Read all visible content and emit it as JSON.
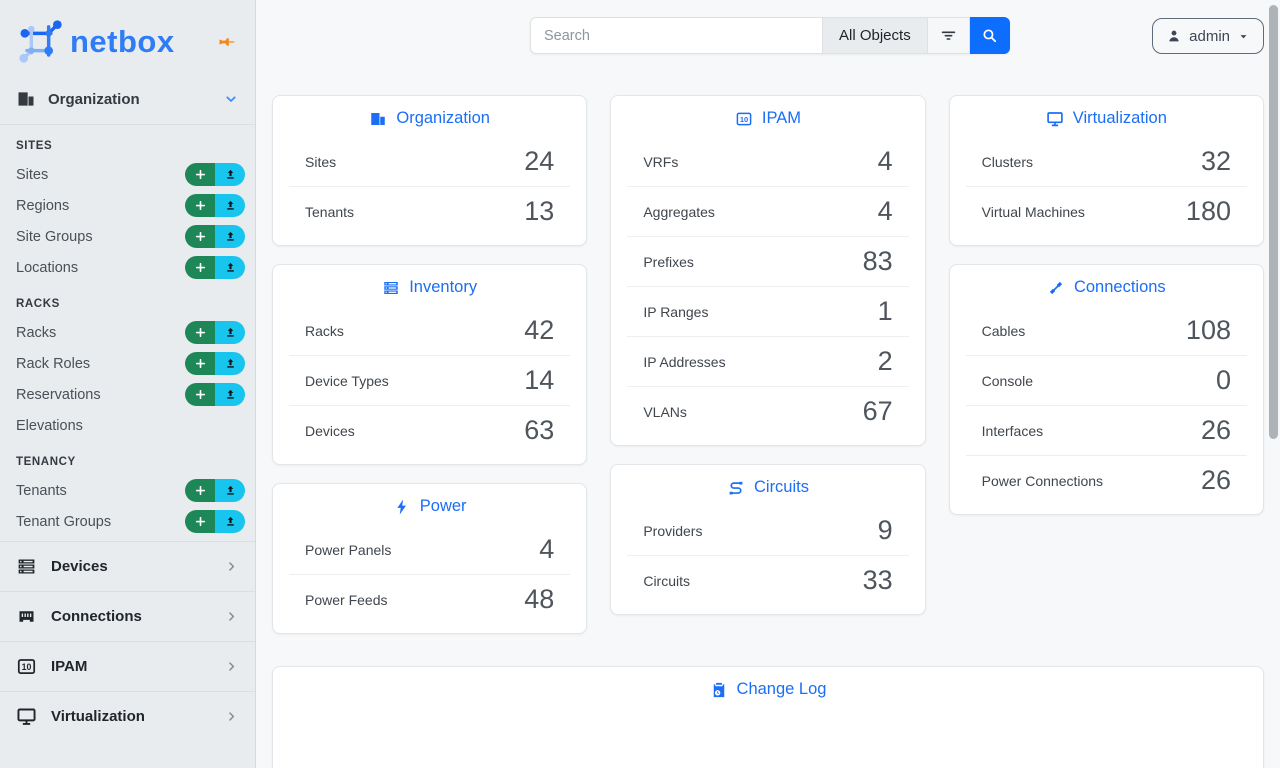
{
  "brand": {
    "name": "netbox"
  },
  "colors": {
    "primary_blue": "#1b6ef5",
    "logo_blue": "#2e7cf6",
    "add_green": "#1d8757",
    "import_cyan": "#18c5ee",
    "pin_orange": "#f6871f",
    "search_button_blue": "#0d6efd"
  },
  "sidebar": {
    "expanded_group": {
      "label": "Organization",
      "icon": "building"
    },
    "sections": [
      {
        "title": "SITES",
        "items": [
          {
            "label": "Sites",
            "actions": true
          },
          {
            "label": "Regions",
            "actions": true
          },
          {
            "label": "Site Groups",
            "actions": true
          },
          {
            "label": "Locations",
            "actions": true
          }
        ]
      },
      {
        "title": "RACKS",
        "items": [
          {
            "label": "Racks",
            "actions": true
          },
          {
            "label": "Rack Roles",
            "actions": true
          },
          {
            "label": "Reservations",
            "actions": true
          },
          {
            "label": "Elevations",
            "actions": false
          }
        ]
      },
      {
        "title": "TENANCY",
        "items": [
          {
            "label": "Tenants",
            "actions": true
          },
          {
            "label": "Tenant Groups",
            "actions": true
          }
        ]
      }
    ],
    "collapsed_groups": [
      {
        "label": "Devices",
        "icon": "server"
      },
      {
        "label": "Connections",
        "icon": "ethernet"
      },
      {
        "label": "IPAM",
        "icon": "binary"
      },
      {
        "label": "Virtualization",
        "icon": "monitor"
      }
    ]
  },
  "topbar": {
    "search_placeholder": "Search",
    "scope_label": "All Objects",
    "user_label": "admin",
    "icons": {
      "filter": "filter-variant",
      "submit": "magnify",
      "user": "person",
      "caret": "caret-down"
    }
  },
  "cards": {
    "columns": [
      [
        {
          "title": "Organization",
          "icon": "building",
          "rows": [
            {
              "label": "Sites",
              "value": "24"
            },
            {
              "label": "Tenants",
              "value": "13"
            }
          ]
        },
        {
          "title": "Inventory",
          "icon": "server",
          "rows": [
            {
              "label": "Racks",
              "value": "42"
            },
            {
              "label": "Device Types",
              "value": "14"
            },
            {
              "label": "Devices",
              "value": "63"
            }
          ]
        },
        {
          "title": "Power",
          "icon": "bolt",
          "rows": [
            {
              "label": "Power Panels",
              "value": "4"
            },
            {
              "label": "Power Feeds",
              "value": "48"
            }
          ]
        }
      ],
      [
        {
          "title": "IPAM",
          "icon": "binary",
          "rows": [
            {
              "label": "VRFs",
              "value": "4"
            },
            {
              "label": "Aggregates",
              "value": "4"
            },
            {
              "label": "Prefixes",
              "value": "83"
            },
            {
              "label": "IP Ranges",
              "value": "1"
            },
            {
              "label": "IP Addresses",
              "value": "2"
            },
            {
              "label": "VLANs",
              "value": "67"
            }
          ]
        },
        {
          "title": "Circuits",
          "icon": "route",
          "rows": [
            {
              "label": "Providers",
              "value": "9"
            },
            {
              "label": "Circuits",
              "value": "33"
            }
          ]
        }
      ],
      [
        {
          "title": "Virtualization",
          "icon": "monitor",
          "rows": [
            {
              "label": "Clusters",
              "value": "32"
            },
            {
              "label": "Virtual Machines",
              "value": "180"
            }
          ]
        },
        {
          "title": "Connections",
          "icon": "cable",
          "rows": [
            {
              "label": "Cables",
              "value": "108"
            },
            {
              "label": "Console",
              "value": "0"
            },
            {
              "label": "Interfaces",
              "value": "26"
            },
            {
              "label": "Power Connections",
              "value": "26"
            }
          ]
        }
      ]
    ],
    "footer_card": {
      "title": "Change Log",
      "icon": "changelog"
    }
  }
}
